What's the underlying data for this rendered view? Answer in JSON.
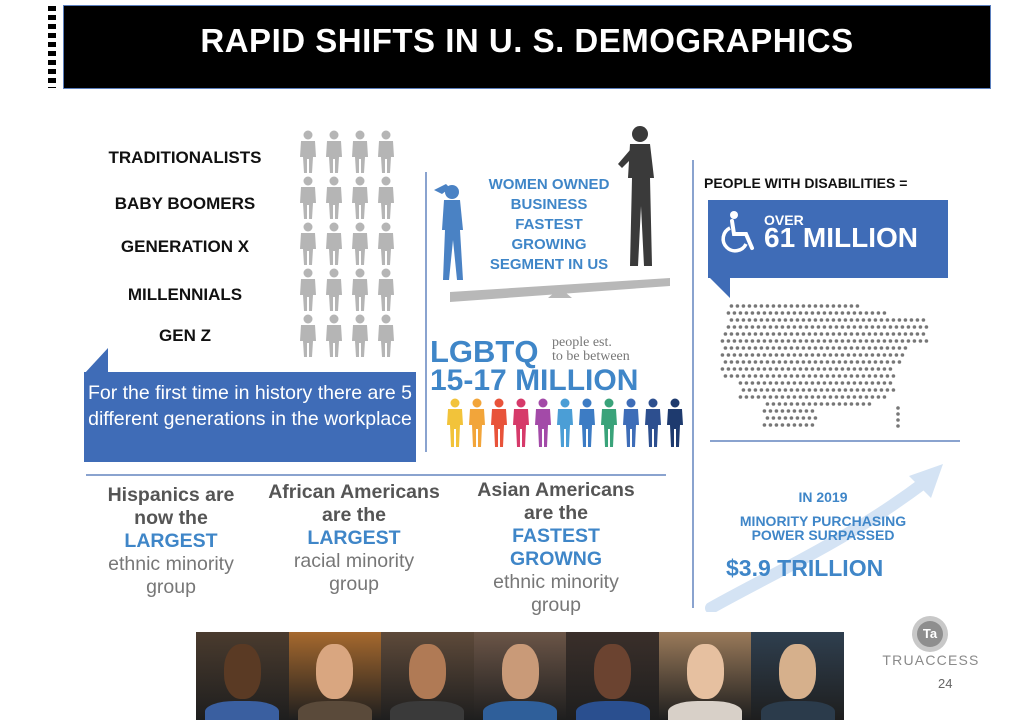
{
  "header": {
    "title": "RAPID SHIFTS IN U. S. DEMOGRAPHICS"
  },
  "generations": {
    "labels": [
      "TRADITIONALISTS",
      "BABY BOOMERS",
      "GENERATION X",
      "MILLENNIALS",
      "GEN Z"
    ],
    "callout": "For the first time in history there are 5 different generations in the workplace",
    "person_color": "#b5b5b5"
  },
  "women": {
    "text_lines": [
      "WOMEN OWNED",
      "BUSINESS",
      "FASTEST",
      "GROWING",
      "SEGMENT IN US"
    ],
    "man_color": "#4a82c4",
    "woman_color": "#3a3a3a"
  },
  "lgbtq": {
    "label": "LGBTQ",
    "note_lines": [
      "people est.",
      "to be between"
    ],
    "number": "15-17 MILLION",
    "figure_colors": [
      "#f2c33a",
      "#f2a53a",
      "#e8533a",
      "#d63a6a",
      "#a34aa8",
      "#4b9ed6",
      "#3d7cc4",
      "#3aa37a",
      "#3e6db8",
      "#2d4f8f",
      "#1e3a6e"
    ]
  },
  "disabilities": {
    "title": "PEOPLE WITH DISABILITIES =",
    "over": "OVER",
    "number": "61 MILLION",
    "icon": "wheelchair-icon"
  },
  "stats": [
    {
      "lines": [
        [
          "Hispanics are",
          "strong"
        ],
        [
          "now the",
          "strong"
        ],
        [
          "LARGEST",
          "accent"
        ],
        [
          "ethnic minority",
          "soft"
        ],
        [
          "group",
          "soft"
        ]
      ]
    },
    {
      "lines": [
        [
          "African Americans",
          "strong"
        ],
        [
          "are the",
          "strong"
        ],
        [
          "LARGEST",
          "accent"
        ],
        [
          "racial minority",
          "soft"
        ],
        [
          "group",
          "soft"
        ]
      ]
    },
    {
      "lines": [
        [
          "Asian Americans",
          "strong"
        ],
        [
          "are the",
          "strong"
        ],
        [
          "FASTEST",
          "accent"
        ],
        [
          "GROWNG",
          "accent"
        ],
        [
          "ethnic minority",
          "soft"
        ],
        [
          "group",
          "soft"
        ]
      ]
    }
  ],
  "purchasing": {
    "year": "IN 2019",
    "line1": "MINORITY PURCHASING",
    "line2": "POWER SURPASSED",
    "amount": "$3.9 TRILLION"
  },
  "photos": {
    "count": 7,
    "palette": [
      "#4a3b2e",
      "#a6692e",
      "#5e4a3a",
      "#6b5547",
      "#3a2f2a",
      "#9a7a5a",
      "#2f3f4f"
    ]
  },
  "brand": {
    "logo_text": "Ta",
    "name": "TRUACCESS"
  },
  "page_number": "24",
  "colors": {
    "accent": "#3f86c8",
    "box": "#3f6cb7",
    "divider": "#8aa3cf"
  }
}
